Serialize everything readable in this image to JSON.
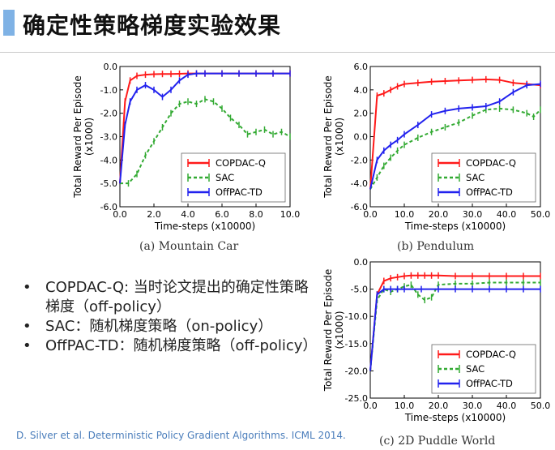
{
  "slide": {
    "title": "确定性策略梯度实验效果",
    "bullets": [
      "COPDAC-Q: 当时论文提出的确定性策略梯度（off-policy）",
      "SAC：随机梯度策略（on-policy）",
      "OffPAC-TD：随机梯度策略（off-policy）"
    ],
    "bullet_symbol": "•",
    "citation": "D. Silver et al. Deterministic Policy Gradient Algorithms. ICML 2014."
  },
  "colors": {
    "copdac": "#ff1a1a",
    "sac": "#33aa33",
    "offpac": "#2222ee",
    "title_bar": "#7fb2e5",
    "citation": "#4a7dbb"
  },
  "chart_data": [
    {
      "type": "line",
      "caption": "(a) Mountain Car",
      "xlabel": "Time-steps (x10000)",
      "ylabel": "Total Reward Per Episode",
      "ylabel2": "(x1000)",
      "xlim": [
        0,
        10
      ],
      "ylim": [
        -6,
        0
      ],
      "xticks": [
        "0.0",
        "2.0",
        "4.0",
        "6.0",
        "8.0",
        "10.0"
      ],
      "xtick_values": [
        0,
        2,
        4,
        6,
        8,
        10
      ],
      "yticks": [
        "0.0",
        "-1.0",
        "-2.0",
        "-3.0",
        "-4.0",
        "-5.0",
        "-6.0"
      ],
      "ytick_values": [
        0,
        -1,
        -2,
        -3,
        -4,
        -5,
        -6
      ],
      "legend_position": "bottom-right",
      "series": [
        {
          "name": "COPDAC-Q",
          "style": "solid",
          "color": "#ff1a1a",
          "x": [
            0,
            0.3,
            0.6,
            1.0,
            1.5,
            2.0,
            2.5,
            3.0,
            3.5,
            4.0,
            4.5,
            5.0,
            6.0,
            7.0,
            8.0,
            9.0,
            10.0
          ],
          "y": [
            -5.0,
            -1.5,
            -0.6,
            -0.4,
            -0.35,
            -0.33,
            -0.32,
            -0.32,
            -0.31,
            -0.3,
            -0.3,
            -0.3,
            -0.3,
            -0.3,
            -0.3,
            -0.3,
            -0.3
          ]
        },
        {
          "name": "SAC",
          "style": "dashed",
          "color": "#33aa33",
          "x": [
            0,
            0.5,
            1.0,
            1.5,
            2.0,
            2.5,
            3.0,
            3.5,
            4.0,
            4.5,
            5.0,
            5.5,
            6.0,
            6.5,
            7.0,
            7.5,
            8.0,
            8.5,
            9.0,
            9.5,
            10.0
          ],
          "y": [
            -5.0,
            -5.0,
            -4.6,
            -3.8,
            -3.2,
            -2.6,
            -2.0,
            -1.6,
            -1.5,
            -1.6,
            -1.4,
            -1.5,
            -1.8,
            -2.2,
            -2.5,
            -2.9,
            -2.8,
            -2.7,
            -2.9,
            -2.8,
            -3.0
          ]
        },
        {
          "name": "OffPAC-TD",
          "style": "solid",
          "color": "#2222ee",
          "x": [
            0,
            0.3,
            0.6,
            1.0,
            1.5,
            2.0,
            2.5,
            3.0,
            3.5,
            4.0,
            4.5,
            5.0,
            6.0,
            7.0,
            8.0,
            9.0,
            10.0
          ],
          "y": [
            -5.0,
            -2.5,
            -1.5,
            -1.0,
            -0.8,
            -1.0,
            -1.3,
            -1.0,
            -0.6,
            -0.35,
            -0.3,
            -0.3,
            -0.3,
            -0.3,
            -0.3,
            -0.3,
            -0.3
          ]
        }
      ]
    },
    {
      "type": "line",
      "caption": "(b) Pendulum",
      "xlabel": "Time-steps (x10000)",
      "ylabel": "Total Reward Per Episode",
      "ylabel2": "(x1000)",
      "xlim": [
        0,
        50
      ],
      "ylim": [
        -6,
        6
      ],
      "xticks": [
        "0.0",
        "10.0",
        "20.0",
        "30.0",
        "40.0",
        "50.0"
      ],
      "xtick_values": [
        0,
        10,
        20,
        30,
        40,
        50
      ],
      "yticks": [
        "6.0",
        "4.0",
        "2.0",
        "0.0",
        "-2.0",
        "-4.0",
        "-6.0"
      ],
      "ytick_values": [
        6,
        4,
        2,
        0,
        -2,
        -4,
        -6
      ],
      "legend_position": "bottom-right",
      "series": [
        {
          "name": "COPDAC-Q",
          "style": "solid",
          "color": "#ff1a1a",
          "x": [
            0,
            2,
            4,
            6,
            8,
            10,
            14,
            18,
            22,
            26,
            30,
            34,
            38,
            42,
            46,
            50
          ],
          "y": [
            -4.5,
            3.5,
            3.7,
            4.0,
            4.3,
            4.5,
            4.6,
            4.7,
            4.75,
            4.8,
            4.85,
            4.9,
            4.85,
            4.6,
            4.5,
            4.4
          ]
        },
        {
          "name": "SAC",
          "style": "dashed",
          "color": "#33aa33",
          "x": [
            0,
            2,
            4,
            6,
            8,
            10,
            14,
            18,
            22,
            26,
            30,
            34,
            38,
            42,
            46,
            48,
            50
          ],
          "y": [
            -4.5,
            -3.5,
            -2.5,
            -1.8,
            -1.2,
            -0.7,
            -0.1,
            0.4,
            0.8,
            1.2,
            1.8,
            2.3,
            2.4,
            2.3,
            2.0,
            1.7,
            2.3
          ]
        },
        {
          "name": "OffPAC-TD",
          "style": "solid",
          "color": "#2222ee",
          "x": [
            0,
            2,
            4,
            6,
            8,
            10,
            14,
            18,
            22,
            26,
            30,
            34,
            38,
            42,
            46,
            50
          ],
          "y": [
            -4.5,
            -2.0,
            -1.2,
            -0.7,
            -0.3,
            0.2,
            1.0,
            1.9,
            2.2,
            2.4,
            2.5,
            2.6,
            3.0,
            3.8,
            4.4,
            4.5
          ]
        }
      ]
    },
    {
      "type": "line",
      "caption": "(c) 2D Puddle World",
      "xlabel": "Time-steps (x10000)",
      "ylabel": "Total Reward Per Episode",
      "ylabel2": "(x1000)",
      "xlim": [
        0,
        50
      ],
      "ylim": [
        -25,
        0
      ],
      "xticks": [
        "0.0",
        "10.0",
        "20.0",
        "30.0",
        "40.0",
        "50.0"
      ],
      "xtick_values": [
        0,
        10,
        20,
        30,
        40,
        50
      ],
      "yticks": [
        "0.0",
        "-5.0",
        "-10.0",
        "-15.0",
        "-20.0",
        "-25.0"
      ],
      "ytick_values": [
        0,
        -5,
        -10,
        -15,
        -20,
        -25
      ],
      "legend_position": "bottom-right",
      "series": [
        {
          "name": "COPDAC-Q",
          "style": "solid",
          "color": "#ff1a1a",
          "x": [
            0,
            2,
            4,
            6,
            8,
            10,
            12,
            14,
            16,
            18,
            20,
            25,
            30,
            35,
            40,
            45,
            50
          ],
          "y": [
            -20,
            -6,
            -3.5,
            -3.0,
            -2.8,
            -2.6,
            -2.5,
            -2.5,
            -2.5,
            -2.5,
            -2.5,
            -2.6,
            -2.6,
            -2.6,
            -2.6,
            -2.6,
            -2.6
          ]
        },
        {
          "name": "SAC",
          "style": "dashed",
          "color": "#33aa33",
          "x": [
            0,
            2,
            4,
            6,
            8,
            10,
            12,
            14,
            16,
            18,
            20,
            25,
            30,
            35,
            40,
            45,
            50
          ],
          "y": [
            -20,
            -7,
            -5,
            -5.5,
            -5,
            -4.5,
            -4.2,
            -6,
            -7,
            -6.5,
            -4.2,
            -4,
            -4,
            -3.8,
            -3.8,
            -3.8,
            -3.8
          ]
        },
        {
          "name": "OffPAC-TD",
          "style": "solid",
          "color": "#2222ee",
          "x": [
            0,
            2,
            4,
            6,
            8,
            10,
            15,
            20,
            25,
            30,
            35,
            40,
            45,
            50
          ],
          "y": [
            -20,
            -6,
            -5,
            -5,
            -5,
            -5,
            -5,
            -5,
            -5,
            -5,
            -5,
            -5,
            -5,
            -5
          ]
        }
      ]
    }
  ]
}
